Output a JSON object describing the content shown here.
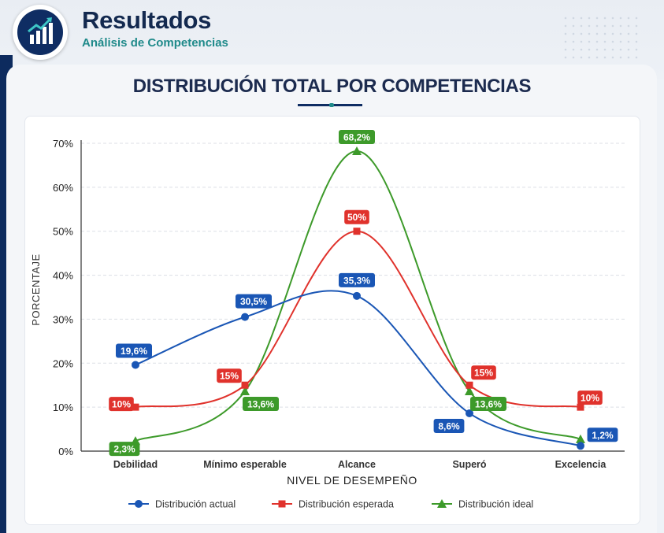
{
  "header": {
    "title": "Resultados",
    "subtitle": "Análisis de Competencias",
    "icon": "bar-chart-growth-icon"
  },
  "chart_heading": "DISTRIBUCIÓN TOTAL POR COMPETENCIAS",
  "chart_data": {
    "type": "line",
    "title": "DISTRIBUCIÓN TOTAL POR COMPETENCIAS",
    "xlabel": "NIVEL DE DESEMPEÑO",
    "ylabel": "PORCENTAJE",
    "categories": [
      "Debilidad",
      "Mínimo esperable",
      "Alcance",
      "Superó",
      "Excelencia"
    ],
    "ylim": [
      0,
      70
    ],
    "yticks": [
      0,
      10,
      20,
      30,
      40,
      50,
      60,
      70
    ],
    "ytick_labels": [
      "0%",
      "10%",
      "20%",
      "30%",
      "40%",
      "50%",
      "60%",
      "70%"
    ],
    "grid": true,
    "legend_position": "bottom",
    "series": [
      {
        "name": "Distribución actual",
        "color": "#1a56b5",
        "marker": "circle",
        "values": [
          19.6,
          30.5,
          35.3,
          8.6,
          1.2
        ],
        "labels": [
          "19,6%",
          "30,5%",
          "35,3%",
          "8,6%",
          "1,2%"
        ]
      },
      {
        "name": "Distribución esperada",
        "color": "#e0322c",
        "marker": "square",
        "values": [
          10,
          15,
          50,
          15,
          10
        ],
        "labels": [
          "10%",
          "15%",
          "50%",
          "15%",
          "10%"
        ]
      },
      {
        "name": "Distribución ideal",
        "color": "#3d9a2a",
        "marker": "triangle",
        "values": [
          2.3,
          13.6,
          68.2,
          13.6,
          2.7
        ],
        "labels": [
          "2,3%",
          "13,6%",
          "68,2%",
          "13,6%",
          ""
        ]
      }
    ]
  }
}
